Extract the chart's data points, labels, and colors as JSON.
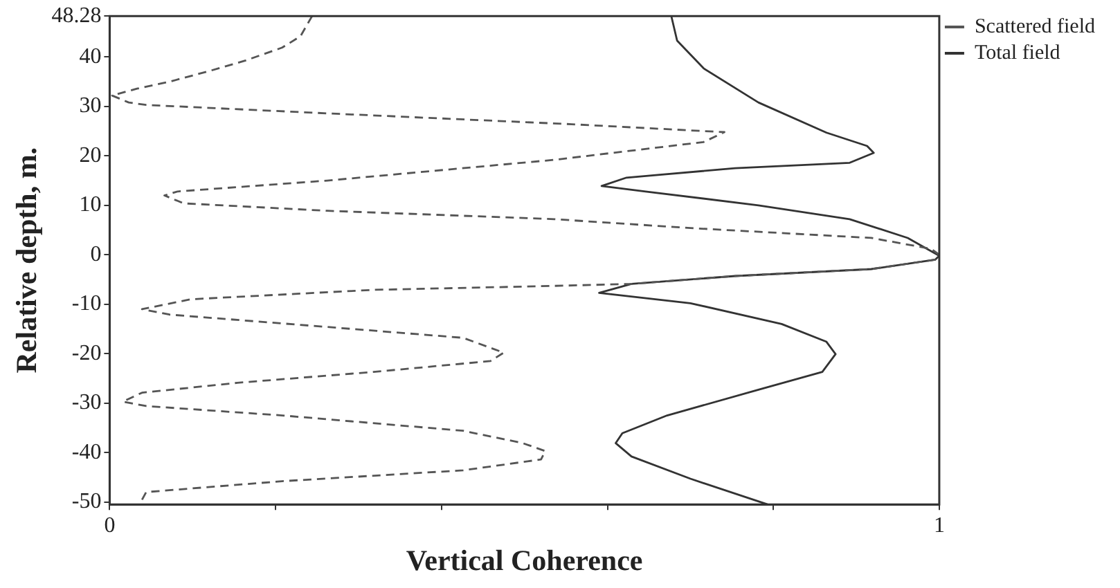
{
  "chart_data": {
    "type": "line",
    "xlabel": "Vertical Coherence",
    "ylabel": "Relative depth, m.",
    "xlim": [
      0,
      1
    ],
    "xticks": [
      0,
      {
        "value": 0.2,
        "label": null
      },
      {
        "value": 0.4,
        "label": null
      },
      {
        "value": 0.6,
        "label": null
      },
      {
        "value": 0.8,
        "label": null
      },
      1
    ],
    "ylim": [
      -50.5,
      48.28
    ],
    "yticks": [
      -50,
      -40,
      -30,
      -20,
      -10,
      0,
      10,
      20,
      30,
      40,
      48.28
    ],
    "grid": false,
    "legend": "right",
    "marker": "none",
    "series": [
      {
        "name": "Scattered field",
        "color": "#555555",
        "line_style": "dashed",
        "x": [
          0.244,
          0.23,
          0.208,
          0.164,
          0.121,
          0.072,
          0.033,
          0.003,
          0.023,
          0.044,
          0.262,
          0.557,
          0.741,
          0.716,
          0.536,
          0.262,
          0.082,
          0.066,
          0.089,
          0.262,
          0.536,
          0.7,
          0.918,
          0.99,
          1.0,
          0.995,
          0.918,
          0.754,
          0.629,
          0.536,
          0.318,
          0.098,
          0.039,
          0.072,
          0.262,
          0.426,
          0.475,
          0.459,
          0.318,
          0.154,
          0.039,
          0.016,
          0.044,
          0.208,
          0.426,
          0.498,
          0.525,
          0.52,
          0.426,
          0.208,
          0.044,
          0.036
        ],
        "values": [
          48.28,
          44.2,
          41.9,
          39.3,
          37.2,
          35.0,
          33.6,
          32.2,
          30.8,
          30.3,
          28.6,
          26.4,
          24.8,
          22.8,
          19.2,
          15.0,
          12.8,
          12.0,
          10.4,
          8.9,
          7.2,
          5.4,
          3.4,
          1.2,
          0.0,
          -1.0,
          -2.9,
          -4.3,
          -5.9,
          -6.3,
          -7.1,
          -9.0,
          -11.0,
          -12.1,
          -14.6,
          -16.8,
          -19.8,
          -21.5,
          -23.7,
          -25.9,
          -27.9,
          -29.7,
          -30.6,
          -32.5,
          -35.6,
          -38.1,
          -39.7,
          -41.4,
          -43.6,
          -45.8,
          -48.0,
          -50.5
        ]
      },
      {
        "name": "Total field",
        "color": "#333333",
        "line_style": "solid",
        "x": [
          0.677,
          0.684,
          0.716,
          0.782,
          0.864,
          0.913,
          0.921,
          0.892,
          0.754,
          0.623,
          0.593,
          0.646,
          0.782,
          0.892,
          0.962,
          1.0,
          0.995,
          0.918,
          0.754,
          0.629,
          0.59,
          0.7,
          0.81,
          0.864,
          0.875,
          0.859,
          0.782,
          0.672,
          0.618,
          0.61,
          0.629,
          0.7,
          0.793
        ],
        "values": [
          48.28,
          43.3,
          37.7,
          30.8,
          24.7,
          22.0,
          20.6,
          18.6,
          17.5,
          15.6,
          13.9,
          12.8,
          10.0,
          7.2,
          3.4,
          -0.2,
          -1.0,
          -2.9,
          -4.3,
          -5.9,
          -7.7,
          -9.8,
          -14.0,
          -17.6,
          -20.1,
          -23.7,
          -27.3,
          -32.5,
          -36.1,
          -38.1,
          -40.8,
          -45.3,
          -50.5
        ]
      }
    ]
  }
}
